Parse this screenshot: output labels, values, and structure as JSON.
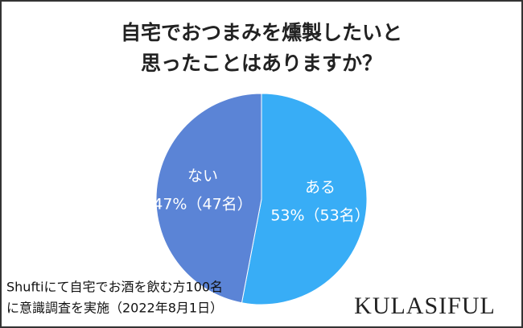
{
  "chart_data": {
    "type": "pie",
    "title_lines": [
      "自宅でおつまみを燻製したいと",
      "思ったことはありますか？"
    ],
    "categories": [
      "ある",
      "ない"
    ],
    "values": [
      53,
      47
    ],
    "value_labels": [
      "53%（53名）",
      "47%（47名）"
    ],
    "colors": [
      "#38adf6",
      "#5b84d6"
    ],
    "note_lines": [
      "Shuftiにて自宅でお酒を飲む方100名",
      "に意識調査を実施（2022年8月1日）"
    ],
    "brand": "KULASIFUL"
  }
}
